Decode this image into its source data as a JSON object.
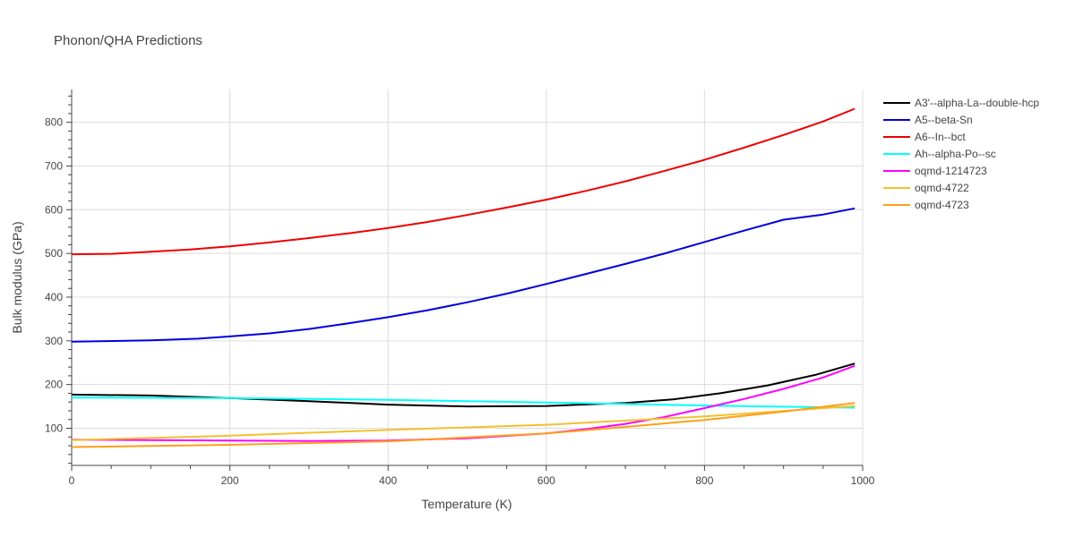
{
  "chart_data": {
    "type": "line",
    "title": "Phonon/QHA Predictions",
    "xlabel": "Temperature (K)",
    "ylabel": "Bulk modulus (GPa)",
    "xlim": [
      0,
      1000
    ],
    "ylim": [
      15,
      875
    ],
    "xticks": [
      0,
      200,
      400,
      600,
      800,
      1000
    ],
    "yticks": [
      100,
      200,
      300,
      400,
      500,
      600,
      700,
      800
    ],
    "grid": true,
    "legend_position": "top-right",
    "series": [
      {
        "name": "A3'--alpha-La--double-hcp",
        "color": "#000000",
        "x": [
          0,
          100,
          200,
          300,
          400,
          500,
          600,
          700,
          760,
          820,
          880,
          940,
          990
        ],
        "y": [
          177,
          175,
          169,
          162,
          154,
          150,
          151,
          158,
          166,
          180,
          198,
          222,
          248
        ]
      },
      {
        "name": "A5--beta-Sn",
        "color": "#0000dd",
        "x": [
          0,
          100,
          160,
          200,
          250,
          300,
          350,
          400,
          450,
          500,
          550,
          600,
          650,
          700,
          750,
          800,
          850,
          900,
          950,
          990
        ],
        "y": [
          298,
          301,
          305,
          310,
          317,
          327,
          340,
          354,
          370,
          388,
          408,
          430,
          453,
          476,
          500,
          526,
          552,
          577,
          589,
          603
        ]
      },
      {
        "name": "A6--In--bct",
        "color": "#ee0000",
        "x": [
          0,
          50,
          100,
          150,
          200,
          250,
          300,
          350,
          400,
          450,
          500,
          550,
          600,
          650,
          700,
          750,
          800,
          850,
          900,
          950,
          990
        ],
        "y": [
          498,
          499,
          504,
          509,
          516,
          525,
          535,
          546,
          558,
          572,
          588,
          605,
          623,
          643,
          665,
          689,
          714,
          742,
          771,
          802,
          831
        ]
      },
      {
        "name": "Ah--alpha-Po--sc",
        "color": "#00ffff",
        "x": [
          0,
          200,
          400,
          600,
          800,
          990
        ],
        "y": [
          170,
          169,
          165,
          159,
          152,
          147
        ]
      },
      {
        "name": "oqmd-1214723",
        "color": "#ff00ff",
        "x": [
          0,
          100,
          200,
          300,
          400,
          500,
          600,
          650,
          700,
          750,
          800,
          850,
          900,
          950,
          990
        ],
        "y": [
          74,
          73,
          72,
          71,
          72,
          77,
          88,
          98,
          110,
          126,
          146,
          167,
          190,
          216,
          243
        ]
      },
      {
        "name": "oqmd-4722",
        "color": "#f2c12e",
        "x": [
          0,
          200,
          400,
          600,
          800,
          990
        ],
        "y": [
          73,
          83,
          96,
          108,
          127,
          151
        ]
      },
      {
        "name": "oqmd-4723",
        "color": "#ff9f1a",
        "x": [
          0,
          200,
          400,
          600,
          700,
          800,
          900,
          990
        ],
        "y": [
          57,
          62,
          70,
          88,
          103,
          119,
          138,
          158
        ]
      }
    ]
  }
}
